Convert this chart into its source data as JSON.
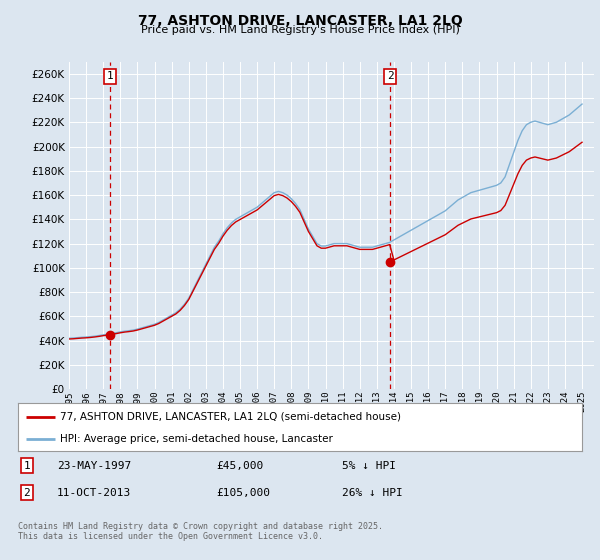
{
  "title": "77, ASHTON DRIVE, LANCASTER, LA1 2LQ",
  "subtitle": "Price paid vs. HM Land Registry's House Price Index (HPI)",
  "ytick_values": [
    0,
    20000,
    40000,
    60000,
    80000,
    100000,
    120000,
    140000,
    160000,
    180000,
    200000,
    220000,
    240000,
    260000
  ],
  "ylim": [
    0,
    270000
  ],
  "background_color": "#dce6f0",
  "grid_color": "#ffffff",
  "sale1_date_num": 1997.39,
  "sale1_price": 45000,
  "sale1_label": "1",
  "sale2_date_num": 2013.78,
  "sale2_price": 105000,
  "sale2_label": "2",
  "line_color_property": "#cc0000",
  "line_color_hpi": "#7bafd4",
  "vline_color": "#cc0000",
  "legend_label_property": "77, ASHTON DRIVE, LANCASTER, LA1 2LQ (semi-detached house)",
  "legend_label_hpi": "HPI: Average price, semi-detached house, Lancaster",
  "footer_text": "Contains HM Land Registry data © Crown copyright and database right 2025.\nThis data is licensed under the Open Government Licence v3.0.",
  "xmin": 1995.3,
  "xmax": 2025.7
}
